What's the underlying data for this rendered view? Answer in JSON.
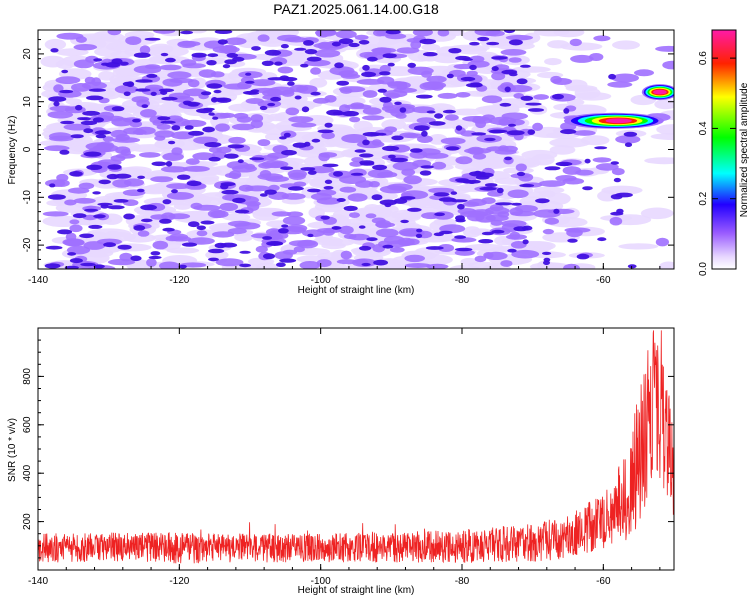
{
  "title": "PAZ1.2025.061.14.00.G18",
  "colors": {
    "snr_line": "#ee2222",
    "contour_light": "#e8d8ff",
    "contour_mid": "#a070ff",
    "contour_dark": "#4010e0"
  },
  "chart_data": [
    {
      "type": "heatmap",
      "title": "PAZ1.2025.061.14.00.G18",
      "xlabel": "Height of straight line (km)",
      "ylabel": "Frequency (Hz)",
      "xlim": [
        -140,
        -50
      ],
      "ylim": [
        -25,
        25
      ],
      "xticks": [
        -140,
        -120,
        -100,
        -80,
        -60
      ],
      "yticks": [
        20,
        10,
        0,
        -10,
        -20
      ],
      "colorbar": {
        "label": "Normalized spectral amplitude",
        "range": [
          0.0,
          0.68
        ],
        "ticks": [
          0.0,
          0.2,
          0.4,
          0.6
        ],
        "colormap": "white-purple-blue-cyan-green-yellow-red-magenta"
      },
      "features": [
        {
          "x_range": [
            -65,
            -52
          ],
          "y": 6,
          "peak_amplitude": 0.68
        },
        {
          "x_range": [
            -54,
            -50
          ],
          "y": 12,
          "peak_amplitude": 0.65
        }
      ],
      "grid": false
    },
    {
      "type": "line",
      "xlabel": "Height of straight line (km)",
      "ylabel": "SNR (10 * v/v)",
      "xlim": [
        -140,
        -50
      ],
      "ylim": [
        0,
        1000
      ],
      "xticks": [
        -140,
        -120,
        -100,
        -80,
        -60
      ],
      "yticks": [
        200,
        400,
        600,
        800
      ],
      "profile": {
        "x": [
          -140,
          -130,
          -120,
          -110,
          -100,
          -90,
          -80,
          -70,
          -65,
          -60,
          -58,
          -56,
          -54,
          -53,
          -52,
          -51,
          -50
        ],
        "mean": [
          90,
          95,
          92,
          90,
          92,
          95,
          100,
          110,
          140,
          200,
          260,
          350,
          550,
          700,
          650,
          500,
          450
        ],
        "amplitude": [
          60,
          60,
          65,
          60,
          60,
          65,
          70,
          80,
          90,
          120,
          150,
          250,
          350,
          300,
          300,
          250,
          250
        ]
      },
      "series": [
        {
          "values": []
        }
      ],
      "grid": false
    }
  ]
}
